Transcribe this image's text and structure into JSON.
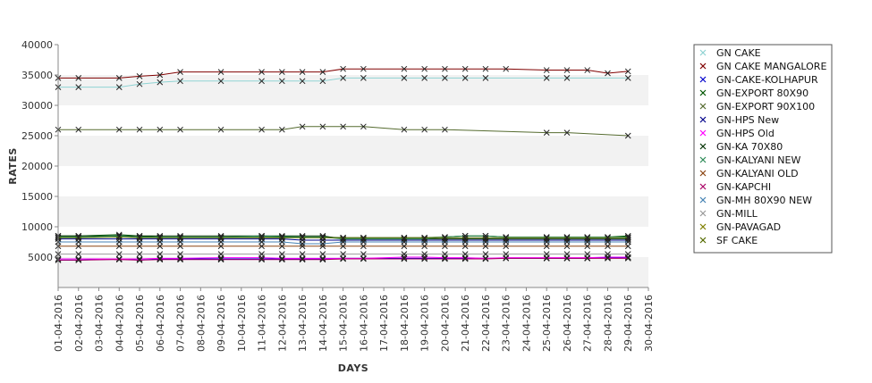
{
  "chart_data": {
    "type": "line",
    "xlabel": "DAYS",
    "ylabel": "RATES",
    "ylim": [
      0,
      40000
    ],
    "yticks": [
      5000,
      10000,
      15000,
      20000,
      25000,
      30000,
      35000,
      40000
    ],
    "grid": "alternating horizontal bands",
    "legend_position": "right",
    "categories": [
      "01-04-2016",
      "02-04-2016",
      "03-04-2016",
      "04-04-2016",
      "05-04-2016",
      "06-04-2016",
      "07-04-2016",
      "08-04-2016",
      "09-04-2016",
      "10-04-2016",
      "11-04-2016",
      "12-04-2016",
      "13-04-2016",
      "14-04-2016",
      "15-04-2016",
      "16-04-2016",
      "17-04-2016",
      "18-04-2016",
      "19-04-2016",
      "20-04-2016",
      "21-04-2016",
      "22-04-2016",
      "23-04-2016",
      "24-04-2016",
      "25-04-2016",
      "26-04-2016",
      "27-04-2016",
      "28-04-2016",
      "29-04-2016",
      "30-04-2016"
    ],
    "series": [
      {
        "name": "GN CAKE",
        "color": "#8fd3d3",
        "values": [
          33000,
          33000,
          null,
          33000,
          33500,
          33800,
          34000,
          null,
          34000,
          null,
          34000,
          34000,
          34000,
          34000,
          34500,
          34500,
          null,
          34500,
          34500,
          34500,
          34500,
          34500,
          null,
          null,
          34500,
          34500,
          null,
          null,
          34500,
          null
        ]
      },
      {
        "name": "GN CAKE MANGALORE",
        "color": "#800000",
        "values": [
          34500,
          34500,
          null,
          34500,
          34800,
          35000,
          35500,
          null,
          35500,
          null,
          35500,
          35500,
          35500,
          35500,
          36000,
          36000,
          null,
          36000,
          36000,
          36000,
          36000,
          36000,
          36000,
          null,
          35800,
          35800,
          35800,
          35300,
          35600,
          null
        ]
      },
      {
        "name": "GN-CAKE-KOLHAPUR",
        "color": "#0000cc",
        "values": [
          4500,
          4500,
          null,
          4700,
          4500,
          4700,
          4700,
          null,
          4700,
          null,
          4700,
          4700,
          4700,
          4700,
          4800,
          4800,
          null,
          4800,
          4800,
          4800,
          4800,
          4800,
          null,
          null,
          4800,
          4800,
          4800,
          4900,
          4900,
          null
        ]
      },
      {
        "name": "GN-EXPORT 80X90",
        "color": "#005500",
        "values": [
          8500,
          8500,
          null,
          8700,
          8500,
          8300,
          8300,
          null,
          8300,
          null,
          8400,
          8300,
          8300,
          8300,
          8200,
          8200,
          null,
          8200,
          8200,
          8300,
          8500,
          8500,
          8300,
          null,
          8300,
          8300,
          8300,
          8300,
          8500,
          null
        ]
      },
      {
        "name": "GN-EXPORT 90X100",
        "color": "#556b2f",
        "values": [
          26000,
          26000,
          null,
          26000,
          26000,
          26000,
          26000,
          null,
          26000,
          null,
          26000,
          26000,
          26500,
          26500,
          26500,
          26500,
          null,
          26000,
          26000,
          26000,
          null,
          null,
          null,
          null,
          25500,
          25500,
          null,
          null,
          25000,
          null
        ]
      },
      {
        "name": "GN-HPS New",
        "color": "#00008b",
        "values": [
          8000,
          8000,
          null,
          8000,
          8000,
          8000,
          8000,
          null,
          8000,
          null,
          8000,
          8000,
          7800,
          7800,
          7800,
          7800,
          null,
          7800,
          7800,
          7800,
          7800,
          7800,
          7800,
          null,
          7800,
          7800,
          7800,
          7800,
          7800,
          null
        ]
      },
      {
        "name": "GN-HPS Old",
        "color": "#ff00ff",
        "values": [
          4700,
          4700,
          null,
          4700,
          4700,
          4800,
          4800,
          null,
          4900,
          null,
          4900,
          4800,
          4800,
          4800,
          4800,
          4800,
          null,
          5000,
          5000,
          4900,
          4900,
          4800,
          4900,
          null,
          4900,
          4900,
          4900,
          5000,
          5000,
          null
        ]
      },
      {
        "name": "GN-KA 70X80",
        "color": "#003300",
        "values": [
          8500,
          8500,
          null,
          8500,
          8500,
          8500,
          8500,
          null,
          8500,
          null,
          8500,
          8500,
          8500,
          8500,
          8000,
          8000,
          null,
          8000,
          8000,
          8000,
          8000,
          8000,
          8000,
          null,
          8000,
          8000,
          8000,
          8000,
          8000,
          null
        ]
      },
      {
        "name": "GN-KALYANI NEW",
        "color": "#2e8b57",
        "values": [
          8300,
          8300,
          null,
          8500,
          8300,
          8300,
          8300,
          null,
          8300,
          null,
          8500,
          8400,
          8300,
          8300,
          8000,
          8000,
          null,
          8000,
          8000,
          8300,
          8500,
          8500,
          8300,
          null,
          8300,
          8300,
          8300,
          8300,
          8300,
          null
        ]
      },
      {
        "name": "GN-KALYANI OLD",
        "color": "#8b4513",
        "values": [
          6800,
          6800,
          null,
          6800,
          6800,
          6800,
          6800,
          null,
          6800,
          null,
          6800,
          6800,
          6800,
          6800,
          6800,
          6800,
          null,
          6800,
          6800,
          6800,
          6800,
          6800,
          6800,
          null,
          6800,
          6800,
          6800,
          6800,
          6800,
          null
        ]
      },
      {
        "name": "GN-KAPCHI",
        "color": "#aa0066",
        "values": [
          4500,
          4500,
          null,
          4600,
          4500,
          4600,
          4600,
          null,
          4600,
          null,
          4600,
          4600,
          4600,
          4600,
          4700,
          4700,
          null,
          4700,
          4700,
          4700,
          4700,
          4700,
          4800,
          null,
          4800,
          4800,
          4800,
          4800,
          4800,
          null
        ]
      },
      {
        "name": "GN-MH 80X90 NEW",
        "color": "#4682b4",
        "values": [
          7500,
          7500,
          null,
          7500,
          7500,
          7500,
          7500,
          null,
          7500,
          null,
          7500,
          7500,
          7200,
          7200,
          7500,
          7500,
          null,
          7500,
          7500,
          7500,
          7500,
          7500,
          7500,
          null,
          7500,
          7500,
          7500,
          7500,
          7500,
          null
        ]
      },
      {
        "name": "GN-MILL",
        "color": "#999999",
        "values": [
          5500,
          5500,
          null,
          5500,
          5500,
          5500,
          5500,
          null,
          5500,
          null,
          5500,
          5500,
          5500,
          5500,
          5500,
          5500,
          null,
          5500,
          5500,
          5500,
          5500,
          5500,
          5500,
          null,
          5500,
          5500,
          5500,
          5500,
          5500,
          null
        ]
      },
      {
        "name": "GN-PAVAGAD",
        "color": "#808000",
        "values": [
          null,
          null,
          null,
          null,
          null,
          null,
          null,
          null,
          4700,
          null,
          null,
          null,
          null,
          null,
          null,
          null,
          null,
          null,
          null,
          null,
          null,
          null,
          null,
          null,
          null,
          null,
          null,
          null,
          null,
          null
        ]
      },
      {
        "name": "SF CAKE",
        "color": "#556b00",
        "values": [
          8200,
          8200,
          null,
          8300,
          8200,
          8200,
          8200,
          null,
          8200,
          null,
          8200,
          8200,
          8200,
          8200,
          8200,
          8200,
          null,
          8200,
          8200,
          8200,
          8200,
          8200,
          8200,
          null,
          8200,
          8200,
          8200,
          8200,
          8200,
          null
        ]
      }
    ]
  }
}
